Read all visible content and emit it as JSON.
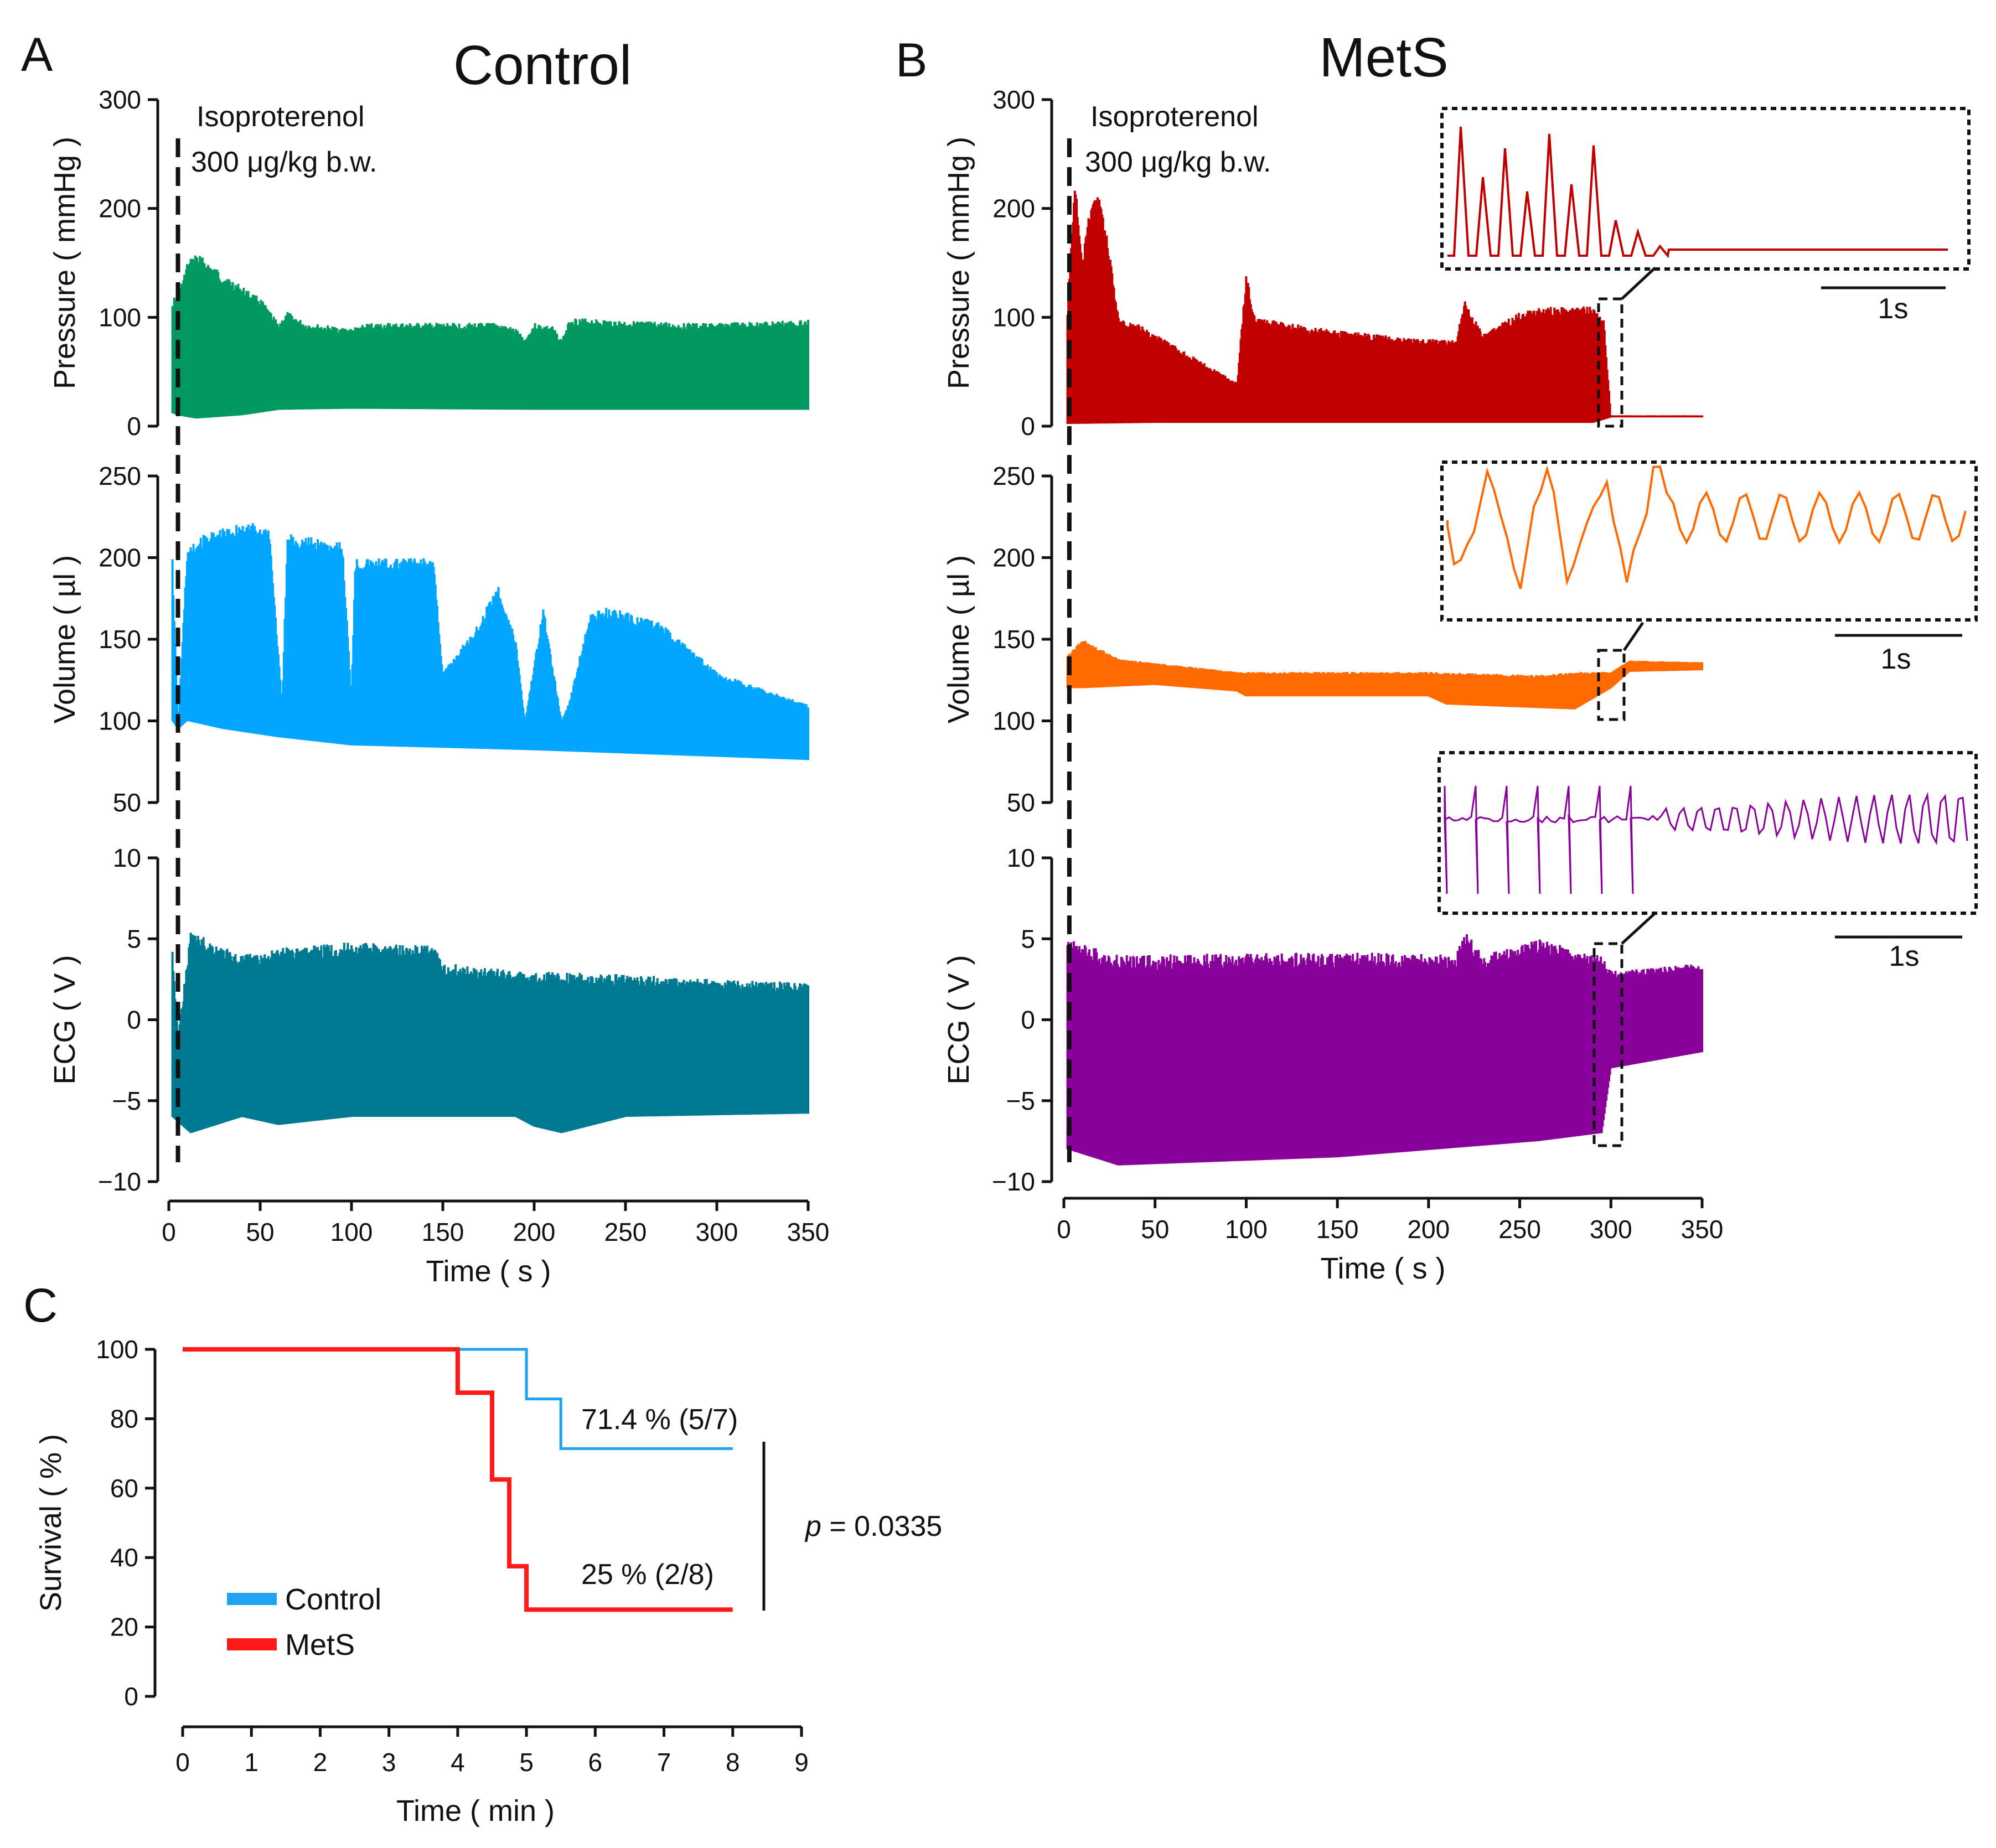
{
  "panels": {
    "A": {
      "letter": "A",
      "title": "Control"
    },
    "B": {
      "letter": "B",
      "title": "MetS"
    },
    "C": {
      "letter": "C"
    }
  },
  "annotations": {
    "drug_line1": "Isoproterenol",
    "drug_line2": "300 μg/kg b.w.",
    "scale_bar": "1s",
    "control_survival": "71.4 % (5/7)",
    "mets_survival": "25 % (2/8)",
    "p_label": "p",
    "p_value": " = 0.0335"
  },
  "colors": {
    "control_pressure": "#009a60",
    "control_volume": "#00a6ff",
    "control_ecg": "#007a92",
    "mets_pressure": "#c00000",
    "mets_volume": "#ff6a00",
    "mets_ecg": "#8a009a",
    "survival_control": "#1fa3f0",
    "survival_mets": "#ff1a1a"
  },
  "chart_data": [
    {
      "type": "line",
      "panel": "A",
      "title": "Control",
      "xlabel": "Time ( s )",
      "xlim": [
        0,
        350
      ],
      "x_ticks": [
        "0",
        "50",
        "100",
        "150",
        "200",
        "250",
        "300",
        "350"
      ],
      "isoproterenol_time_s": 5,
      "tracks": [
        {
          "name": "pressure",
          "ylabel": "Pressure ( mmHg )",
          "ylim": [
            0,
            300
          ],
          "y_ticks": [
            "0",
            "100",
            "200",
            "300"
          ],
          "upper_envelope": [
            [
              2,
              118
            ],
            [
              5,
              120
            ],
            [
              10,
              150
            ],
            [
              15,
              160
            ],
            [
              30,
              140
            ],
            [
              50,
              118
            ],
            [
              60,
              95
            ],
            [
              65,
              105
            ],
            [
              75,
              95
            ],
            [
              100,
              90
            ],
            [
              110,
              95
            ],
            [
              150,
              95
            ],
            [
              180,
              95
            ],
            [
              190,
              90
            ],
            [
              195,
              80
            ],
            [
              200,
              95
            ],
            [
              210,
              92
            ],
            [
              215,
              80
            ],
            [
              220,
              100
            ],
            [
              240,
              98
            ],
            [
              280,
              95
            ],
            [
              300,
              95
            ],
            [
              350,
              98
            ]
          ],
          "lower_envelope": [
            [
              2,
              12
            ],
            [
              5,
              10
            ],
            [
              15,
              7
            ],
            [
              40,
              10
            ],
            [
              60,
              15
            ],
            [
              100,
              16
            ],
            [
              200,
              15
            ],
            [
              350,
              15
            ]
          ]
        },
        {
          "name": "volume",
          "ylabel": "Volume ( µl )",
          "ylim": [
            50,
            250
          ],
          "y_ticks": [
            "50",
            "100",
            "150",
            "200",
            "250"
          ],
          "upper_envelope": [
            [
              2,
              200
            ],
            [
              5,
              95
            ],
            [
              10,
              205
            ],
            [
              20,
              215
            ],
            [
              40,
              222
            ],
            [
              55,
              220
            ],
            [
              62,
              110
            ],
            [
              65,
              215
            ],
            [
              95,
              210
            ],
            [
              100,
              115
            ],
            [
              102,
              200
            ],
            [
              145,
              200
            ],
            [
              150,
              130
            ],
            [
              170,
              160
            ],
            [
              180,
              185
            ],
            [
              190,
              150
            ],
            [
              195,
              100
            ],
            [
              205,
              170
            ],
            [
              215,
              100
            ],
            [
              220,
              115
            ],
            [
              230,
              165
            ],
            [
              240,
              170
            ],
            [
              270,
              160
            ],
            [
              300,
              130
            ],
            [
              350,
              110
            ]
          ],
          "lower_envelope": [
            [
              2,
              100
            ],
            [
              5,
              95
            ],
            [
              10,
              100
            ],
            [
              30,
              95
            ],
            [
              60,
              90
            ],
            [
              100,
              85
            ],
            [
              200,
              82
            ],
            [
              300,
              78
            ],
            [
              350,
              76
            ]
          ]
        },
        {
          "name": "ecg",
          "ylabel": "ECG ( V )",
          "ylim": [
            -10,
            10
          ],
          "y_ticks": [
            "−10",
            "−5",
            "0",
            "5",
            "10"
          ],
          "upper_envelope": [
            [
              2,
              4.5
            ],
            [
              5,
              -1
            ],
            [
              12,
              5.5
            ],
            [
              40,
              4
            ],
            [
              65,
              4.5
            ],
            [
              100,
              4.8
            ],
            [
              145,
              4.6
            ],
            [
              150,
              3.5
            ],
            [
              200,
              3
            ],
            [
              250,
              2.8
            ],
            [
              300,
              2.5
            ],
            [
              350,
              2.3
            ]
          ],
          "lower_envelope": [
            [
              2,
              -6
            ],
            [
              12,
              -7
            ],
            [
              40,
              -6
            ],
            [
              60,
              -6.5
            ],
            [
              100,
              -6
            ],
            [
              190,
              -6
            ],
            [
              200,
              -6.6
            ],
            [
              215,
              -7
            ],
            [
              250,
              -6
            ],
            [
              350,
              -5.8
            ]
          ]
        }
      ]
    },
    {
      "type": "line",
      "panel": "B",
      "title": "MetS",
      "xlabel": "Time ( s )",
      "xlim": [
        0,
        350
      ],
      "x_ticks": [
        "0",
        "50",
        "100",
        "150",
        "200",
        "250",
        "300",
        "350"
      ],
      "isoproterenol_time_s": 3,
      "tracks": [
        {
          "name": "pressure",
          "ylabel": "Pressure ( mmHg )",
          "ylim": [
            0,
            300
          ],
          "y_ticks": [
            "0",
            "100",
            "200",
            "300"
          ],
          "upper_envelope": [
            [
              2,
              110
            ],
            [
              6,
              230
            ],
            [
              10,
              150
            ],
            [
              15,
              210
            ],
            [
              20,
              215
            ],
            [
              25,
              160
            ],
            [
              30,
              100
            ],
            [
              40,
              95
            ],
            [
              95,
              40
            ],
            [
              100,
              140
            ],
            [
              105,
              100
            ],
            [
              150,
              88
            ],
            [
              200,
              80
            ],
            [
              215,
              80
            ],
            [
              220,
              115
            ],
            [
              230,
              85
            ],
            [
              255,
              110
            ],
            [
              275,
              110
            ],
            [
              290,
              110
            ],
            [
              296,
              100
            ],
            [
              300,
              10
            ],
            [
              350,
              10
            ]
          ],
          "lower_envelope": [
            [
              2,
              2
            ],
            [
              50,
              3
            ],
            [
              290,
              3
            ],
            [
              300,
              8
            ],
            [
              350,
              8
            ]
          ]
        },
        {
          "name": "volume",
          "ylabel": "Volume ( µl )",
          "ylim": [
            50,
            250
          ],
          "y_ticks": [
            "50",
            "100",
            "150",
            "200",
            "250"
          ],
          "upper_envelope": [
            [
              2,
              140
            ],
            [
              10,
              150
            ],
            [
              30,
              138
            ],
            [
              95,
              130
            ],
            [
              100,
              130
            ],
            [
              200,
              130
            ],
            [
              260,
              128
            ],
            [
              280,
              130
            ],
            [
              300,
              130
            ],
            [
              310,
              137
            ],
            [
              350,
              136
            ]
          ],
          "lower_envelope": [
            [
              2,
              120
            ],
            [
              10,
              120
            ],
            [
              50,
              122
            ],
            [
              95,
              118
            ],
            [
              100,
              115
            ],
            [
              200,
              115
            ],
            [
              210,
              110
            ],
            [
              280,
              107
            ],
            [
              300,
              120
            ],
            [
              310,
              130
            ],
            [
              350,
              131
            ]
          ]
        },
        {
          "name": "ecg",
          "ylabel": "ECG ( V )",
          "ylim": [
            -10,
            10
          ],
          "y_ticks": [
            "−10",
            "−5",
            "0",
            "5",
            "10"
          ],
          "upper_envelope": [
            [
              2,
              5
            ],
            [
              30,
              4
            ],
            [
              150,
              4.2
            ],
            [
              215,
              4
            ],
            [
              220,
              5.5
            ],
            [
              230,
              4
            ],
            [
              260,
              5
            ],
            [
              295,
              4
            ],
            [
              300,
              3
            ],
            [
              350,
              3.5
            ]
          ],
          "lower_envelope": [
            [
              2,
              -8
            ],
            [
              30,
              -9
            ],
            [
              150,
              -8.5
            ],
            [
              260,
              -7.5
            ],
            [
              295,
              -7
            ],
            [
              300,
              -3
            ],
            [
              350,
              -2
            ]
          ]
        }
      ],
      "zoom_window_s": [
        292,
        305
      ]
    },
    {
      "type": "step",
      "panel": "C",
      "xlabel": "Time ( min )",
      "ylabel": "Survival ( % )",
      "xlim": [
        0,
        9
      ],
      "ylim": [
        0,
        100
      ],
      "x_ticks": [
        "0",
        "1",
        "2",
        "3",
        "4",
        "5",
        "6",
        "7",
        "8",
        "9"
      ],
      "y_ticks": [
        "0",
        "20",
        "40",
        "60",
        "80",
        "100"
      ],
      "series": [
        {
          "name": "Control",
          "x": [
            0,
            5,
            5.5,
            8
          ],
          "y": [
            100,
            85.7,
            71.4,
            71.4
          ]
        },
        {
          "name": "MetS",
          "x": [
            0,
            4,
            4.5,
            4.75,
            5,
            8
          ],
          "y": [
            100,
            87.5,
            62.5,
            37.5,
            25,
            25
          ]
        }
      ]
    }
  ]
}
